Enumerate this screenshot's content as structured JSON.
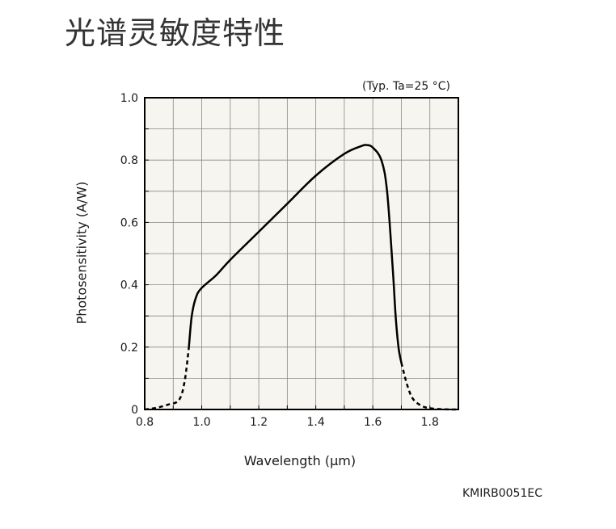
{
  "page": {
    "title": "光谱灵敏度特性",
    "doc_code": "KMIRB0051EC"
  },
  "chart_data": {
    "type": "line",
    "title": "",
    "condition": "(Typ. Ta=25 °C)",
    "xlabel": "Wavelength (μm)",
    "ylabel": "Photosensitivity (A/W)",
    "xlim": [
      0.8,
      1.9
    ],
    "ylim": [
      0,
      1.0
    ],
    "x_ticks": [
      0.8,
      1.0,
      1.2,
      1.4,
      1.6,
      1.8
    ],
    "x_tick_labels": [
      "0.8",
      "1.0",
      "1.2",
      "1.4",
      "1.6",
      "1.8"
    ],
    "y_ticks": [
      0,
      0.2,
      0.4,
      0.6,
      0.8,
      1.0
    ],
    "y_tick_labels": [
      "0",
      "0.2",
      "0.4",
      "0.6",
      "0.8",
      "1.0"
    ],
    "grid": true,
    "background_color": "#f7f5ef",
    "line_color": "#000000",
    "series": [
      {
        "style": "dashed",
        "x": [
          0.8,
          0.84,
          0.88,
          0.92,
          0.94,
          0.955
        ],
        "y": [
          0.0,
          0.005,
          0.015,
          0.03,
          0.09,
          0.2
        ]
      },
      {
        "style": "solid",
        "x": [
          0.955,
          0.965,
          0.98,
          1.0,
          1.05,
          1.1,
          1.2,
          1.3,
          1.4,
          1.5,
          1.56,
          1.58,
          1.6,
          1.63,
          1.65,
          1.67,
          1.68,
          1.69,
          1.7
        ],
        "y": [
          0.2,
          0.3,
          0.36,
          0.39,
          0.43,
          0.48,
          0.57,
          0.66,
          0.75,
          0.82,
          0.845,
          0.848,
          0.84,
          0.8,
          0.7,
          0.45,
          0.3,
          0.2,
          0.15
        ]
      },
      {
        "style": "dashed",
        "x": [
          1.7,
          1.72,
          1.74,
          1.77,
          1.8,
          1.84,
          1.88,
          1.9
        ],
        "y": [
          0.15,
          0.08,
          0.035,
          0.012,
          0.004,
          0.001,
          0.0,
          0.0
        ]
      }
    ]
  }
}
